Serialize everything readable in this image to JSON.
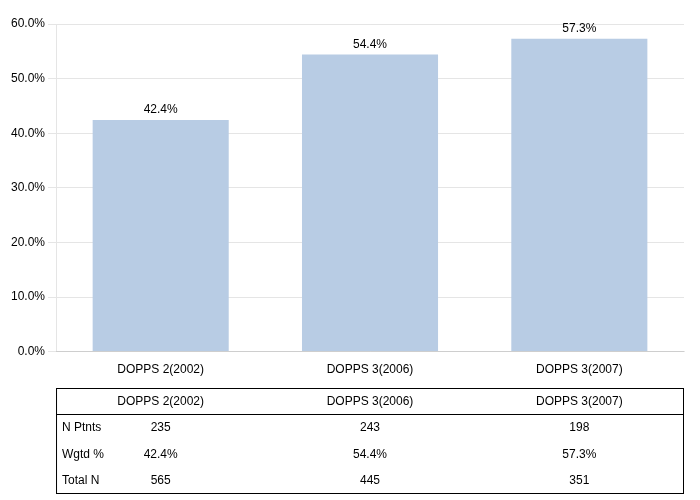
{
  "chart_data": {
    "type": "bar",
    "categories": [
      "DOPPS 2(2002)",
      "DOPPS 3(2006)",
      "DOPPS 3(2007)"
    ],
    "values": [
      42.4,
      54.4,
      57.3
    ],
    "value_labels": [
      "42.4%",
      "54.4%",
      "57.3%"
    ],
    "data_labels": true,
    "color": "#b8cce4",
    "ylim": [
      0,
      60
    ],
    "yticks": [
      {
        "value": 0,
        "label": "0.0%"
      },
      {
        "value": 10,
        "label": "10.0%"
      },
      {
        "value": 20,
        "label": "20.0%"
      },
      {
        "value": 30,
        "label": "30.0%"
      },
      {
        "value": 40,
        "label": "40.0%"
      },
      {
        "value": 50,
        "label": "50.0%"
      },
      {
        "value": 60,
        "label": "60.0%"
      }
    ],
    "grid": true,
    "table": {
      "rows": [
        {
          "label": "N Ptnts",
          "values": [
            235,
            243,
            198
          ]
        },
        {
          "label": "Wgtd %",
          "values": [
            42.4,
            54.4,
            57.3
          ],
          "value_labels": [
            "42.4%",
            "54.4%",
            "57.3%"
          ]
        },
        {
          "label": "Total N",
          "values": [
            565,
            445,
            351
          ]
        }
      ]
    }
  }
}
